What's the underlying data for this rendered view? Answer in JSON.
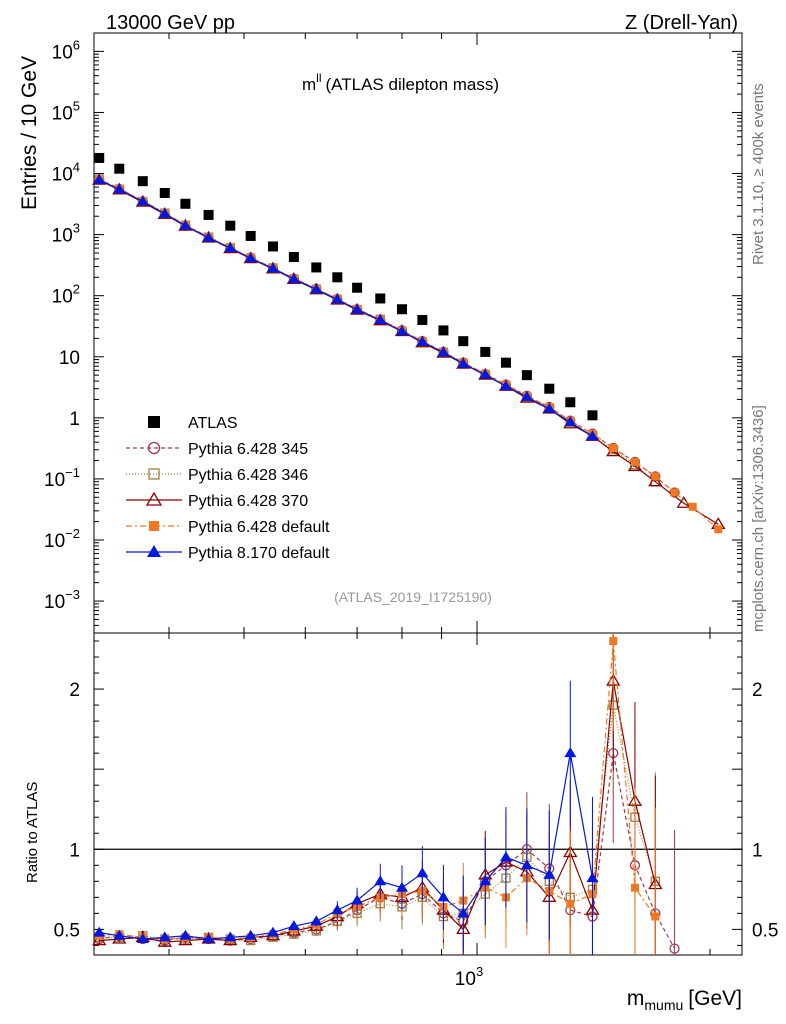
{
  "header": {
    "left": "13000 GeV pp",
    "right": "Z (Drell-Yan)"
  },
  "observable": {
    "symbol": "m",
    "superscript": "ll",
    "description": "(ATLAS dilepton mass)"
  },
  "side_labels": {
    "rivet": "Rivet 3.1.10, ≥ 400k events",
    "mcplots": "mcplots.cern.ch [arXiv:1306.3436]"
  },
  "analysis_id": "(ATLAS_2019_I1725190)",
  "colors": {
    "ATLAS": "#000000",
    "p345": "#a03850",
    "p346": "#a08040",
    "p370": "#880000",
    "pdefault6": "#f07820",
    "pdefault8": "#0018e0",
    "ratio_line": "#000000"
  },
  "chart_data": [
    {
      "type": "scatter",
      "title": "",
      "xlabel": "",
      "ylabel": "Entries / 10 GeV",
      "xscale": "log",
      "yscale": "log",
      "xlim": [
        320,
        2200
      ],
      "ylim": [
        0.0003,
        2000000
      ],
      "yticks": [
        {
          "v": 0.001,
          "base": "10",
          "exp": "−3"
        },
        {
          "v": 0.01,
          "base": "10",
          "exp": "−2"
        },
        {
          "v": 0.1,
          "base": "10",
          "exp": "−1"
        },
        {
          "v": 1,
          "base": "1",
          "exp": ""
        },
        {
          "v": 10,
          "base": "10",
          "exp": ""
        },
        {
          "v": 100,
          "base": "10",
          "exp": "2"
        },
        {
          "v": 1000,
          "base": "10",
          "exp": "3"
        },
        {
          "v": 10000,
          "base": "10",
          "exp": "4"
        },
        {
          "v": 100000,
          "base": "10",
          "exp": "5"
        },
        {
          "v": 1000000,
          "base": "10",
          "exp": "6"
        }
      ],
      "legend_position": "bottom-left",
      "series": [
        {
          "name": "ATLAS",
          "key": "ATLAS",
          "marker": "square",
          "x": [
            325,
            345,
            370,
            395,
            420,
            450,
            480,
            510,
            545,
            580,
            620,
            660,
            700,
            750,
            800,
            850,
            905,
            960,
            1025,
            1090,
            1160,
            1240,
            1320,
            1410
          ],
          "y": [
            18000,
            12000,
            7500,
            4800,
            3200,
            2100,
            1400,
            950,
            640,
            430,
            290,
            200,
            135,
            90,
            60,
            40,
            27,
            18,
            12,
            8,
            5,
            3,
            1.8,
            1.1
          ]
        },
        {
          "name": "Pythia 6.428 345",
          "key": "p345",
          "marker": "circle-open",
          "x": [
            325,
            345,
            370,
            395,
            420,
            450,
            480,
            510,
            545,
            580,
            620,
            660,
            700,
            750,
            800,
            850,
            905,
            960,
            1025,
            1090,
            1160,
            1240,
            1320,
            1410,
            1500,
            1600,
            1700,
            1800
          ],
          "y": [
            8000,
            5600,
            3500,
            2200,
            1400,
            900,
            600,
            420,
            280,
            190,
            130,
            88,
            60,
            40,
            27,
            18,
            12,
            8,
            5.2,
            3.5,
            2.3,
            1.5,
            0.9,
            0.55,
            0.32,
            0.19,
            0.11,
            0.06
          ]
        },
        {
          "name": "Pythia 6.428 346",
          "key": "p346",
          "marker": "square-open",
          "x": [
            325,
            345,
            370,
            395,
            420,
            450,
            480,
            510,
            545,
            580,
            620,
            660,
            700,
            750,
            800,
            850,
            905,
            960,
            1025,
            1090,
            1160,
            1240,
            1320,
            1410,
            1500,
            1600,
            1700
          ],
          "y": [
            8100,
            5500,
            3450,
            2250,
            1420,
            910,
            610,
            410,
            285,
            188,
            128,
            86,
            59,
            41,
            26,
            17.5,
            11.8,
            7.8,
            5.1,
            3.4,
            2.2,
            1.45,
            0.85,
            0.5,
            0.3,
            0.17,
            0.09
          ]
        },
        {
          "name": "Pythia 6.428 370",
          "key": "p370",
          "marker": "triangle-open",
          "x": [
            325,
            345,
            370,
            395,
            420,
            450,
            480,
            510,
            545,
            580,
            620,
            660,
            700,
            750,
            800,
            850,
            905,
            960,
            1025,
            1090,
            1160,
            1240,
            1320,
            1410,
            1500,
            1600,
            1700,
            1850,
            2050
          ],
          "y": [
            7800,
            5400,
            3400,
            2150,
            1380,
            880,
            590,
            405,
            275,
            185,
            125,
            85,
            58,
            39,
            26,
            17,
            11.5,
            7.6,
            5,
            3.3,
            2.1,
            1.4,
            0.8,
            0.5,
            0.28,
            0.16,
            0.09,
            0.04,
            0.018
          ]
        },
        {
          "name": "Pythia 6.428 default",
          "key": "pdefault6",
          "marker": "square-filled",
          "x": [
            325,
            345,
            370,
            395,
            420,
            450,
            480,
            510,
            545,
            580,
            620,
            660,
            700,
            750,
            800,
            850,
            905,
            960,
            1025,
            1090,
            1160,
            1240,
            1320,
            1410,
            1500,
            1600,
            1700,
            1800,
            1900,
            2050
          ],
          "y": [
            8200,
            5700,
            3550,
            2280,
            1450,
            920,
            615,
            425,
            285,
            192,
            130,
            89,
            61,
            41,
            27,
            18,
            12,
            8,
            5.3,
            3.5,
            2.3,
            1.5,
            0.9,
            0.55,
            0.32,
            0.19,
            0.11,
            0.06,
            0.035,
            0.015
          ]
        },
        {
          "name": "Pythia 8.170 default",
          "key": "pdefault8",
          "marker": "triangle-filled",
          "x": [
            325,
            345,
            370,
            395,
            420,
            450,
            480,
            510,
            545,
            580,
            620,
            660,
            700,
            750,
            800,
            850,
            905,
            960,
            1025,
            1090,
            1160,
            1240,
            1320,
            1410
          ],
          "y": [
            7900,
            5500,
            3500,
            2200,
            1400,
            890,
            600,
            410,
            280,
            188,
            127,
            87,
            59,
            40,
            26,
            17.5,
            11.8,
            7.7,
            5.1,
            3.3,
            2.2,
            1.4,
            0.85,
            0.5
          ]
        }
      ]
    },
    {
      "type": "scatter",
      "title": "",
      "xlabel": "m",
      "xlabel_sub": "mumu",
      "xlabel_unit": "[GeV]",
      "ylabel": "Ratio to ATLAS",
      "xscale": "log",
      "yscale": "linear",
      "xlim": [
        320,
        2200
      ],
      "ylim": [
        0.34,
        2.35
      ],
      "yticks": [
        0.5,
        1,
        2
      ],
      "xticks": [
        {
          "v": 1000,
          "base": "10",
          "exp": "3"
        }
      ],
      "reference_line": 1,
      "series": [
        {
          "name": "Pythia 6.428 345",
          "key": "p345",
          "marker": "circle-open",
          "x": [
            325,
            345,
            370,
            395,
            420,
            450,
            480,
            510,
            545,
            580,
            620,
            660,
            700,
            750,
            800,
            850,
            905,
            960,
            1025,
            1090,
            1160,
            1240,
            1320,
            1410,
            1500,
            1600,
            1700,
            1800
          ],
          "y": [
            0.44,
            0.46,
            0.44,
            0.43,
            0.45,
            0.44,
            0.43,
            0.44,
            0.46,
            0.48,
            0.5,
            0.55,
            0.62,
            0.7,
            0.66,
            0.72,
            0.6,
            0.55,
            0.8,
            0.9,
            1.0,
            0.88,
            0.62,
            0.58,
            1.6,
            0.9,
            0.6,
            0.38
          ]
        },
        {
          "name": "Pythia 6.428 346",
          "key": "p346",
          "marker": "square-open",
          "x": [
            325,
            345,
            370,
            395,
            420,
            450,
            480,
            510,
            545,
            580,
            620,
            660,
            700,
            750,
            800,
            850,
            905,
            960,
            1025,
            1090,
            1160,
            1240,
            1320,
            1410,
            1500,
            1600,
            1700
          ],
          "y": [
            0.45,
            0.45,
            0.46,
            0.44,
            0.44,
            0.45,
            0.44,
            0.43,
            0.45,
            0.47,
            0.49,
            0.55,
            0.6,
            0.66,
            0.64,
            0.7,
            0.58,
            0.6,
            0.72,
            0.82,
            0.95,
            0.8,
            0.7,
            0.75,
            1.9,
            1.2,
            0.8
          ]
        },
        {
          "name": "Pythia 6.428 370",
          "key": "p370",
          "marker": "triangle-open",
          "x": [
            325,
            345,
            370,
            395,
            420,
            450,
            480,
            510,
            545,
            580,
            620,
            660,
            700,
            750,
            800,
            850,
            905,
            960,
            1025,
            1090,
            1160,
            1240,
            1320,
            1410,
            1500,
            1600,
            1700
          ],
          "y": [
            0.43,
            0.44,
            0.45,
            0.42,
            0.43,
            0.44,
            0.43,
            0.45,
            0.46,
            0.49,
            0.52,
            0.58,
            0.66,
            0.72,
            0.7,
            0.76,
            0.62,
            0.5,
            0.84,
            0.92,
            0.86,
            0.7,
            0.98,
            0.62,
            2.05,
            1.3,
            0.78
          ]
        },
        {
          "name": "Pythia 6.428 default",
          "key": "pdefault6",
          "marker": "square-filled",
          "x": [
            325,
            345,
            370,
            395,
            420,
            450,
            480,
            510,
            545,
            580,
            620,
            660,
            700,
            750,
            800,
            850,
            905,
            960,
            1025,
            1090,
            1160,
            1240,
            1320,
            1410,
            1500,
            1600,
            1700
          ],
          "y": [
            0.46,
            0.47,
            0.45,
            0.44,
            0.45,
            0.45,
            0.44,
            0.45,
            0.47,
            0.5,
            0.53,
            0.6,
            0.64,
            0.7,
            0.72,
            0.74,
            0.64,
            0.68,
            0.76,
            0.7,
            0.82,
            0.74,
            0.66,
            0.72,
            2.3,
            0.76,
            0.58
          ]
        },
        {
          "name": "Pythia 8.170 default",
          "key": "pdefault8",
          "marker": "triangle-filled",
          "x": [
            325,
            345,
            370,
            395,
            420,
            450,
            480,
            510,
            545,
            580,
            620,
            660,
            700,
            750,
            800,
            850,
            905,
            960,
            1025,
            1090,
            1160,
            1240,
            1320,
            1410
          ],
          "y": [
            0.48,
            0.46,
            0.44,
            0.45,
            0.46,
            0.44,
            0.45,
            0.46,
            0.48,
            0.52,
            0.55,
            0.62,
            0.68,
            0.8,
            0.76,
            0.85,
            0.7,
            0.6,
            0.8,
            0.95,
            0.9,
            0.84,
            1.6,
            0.82
          ]
        }
      ]
    }
  ]
}
